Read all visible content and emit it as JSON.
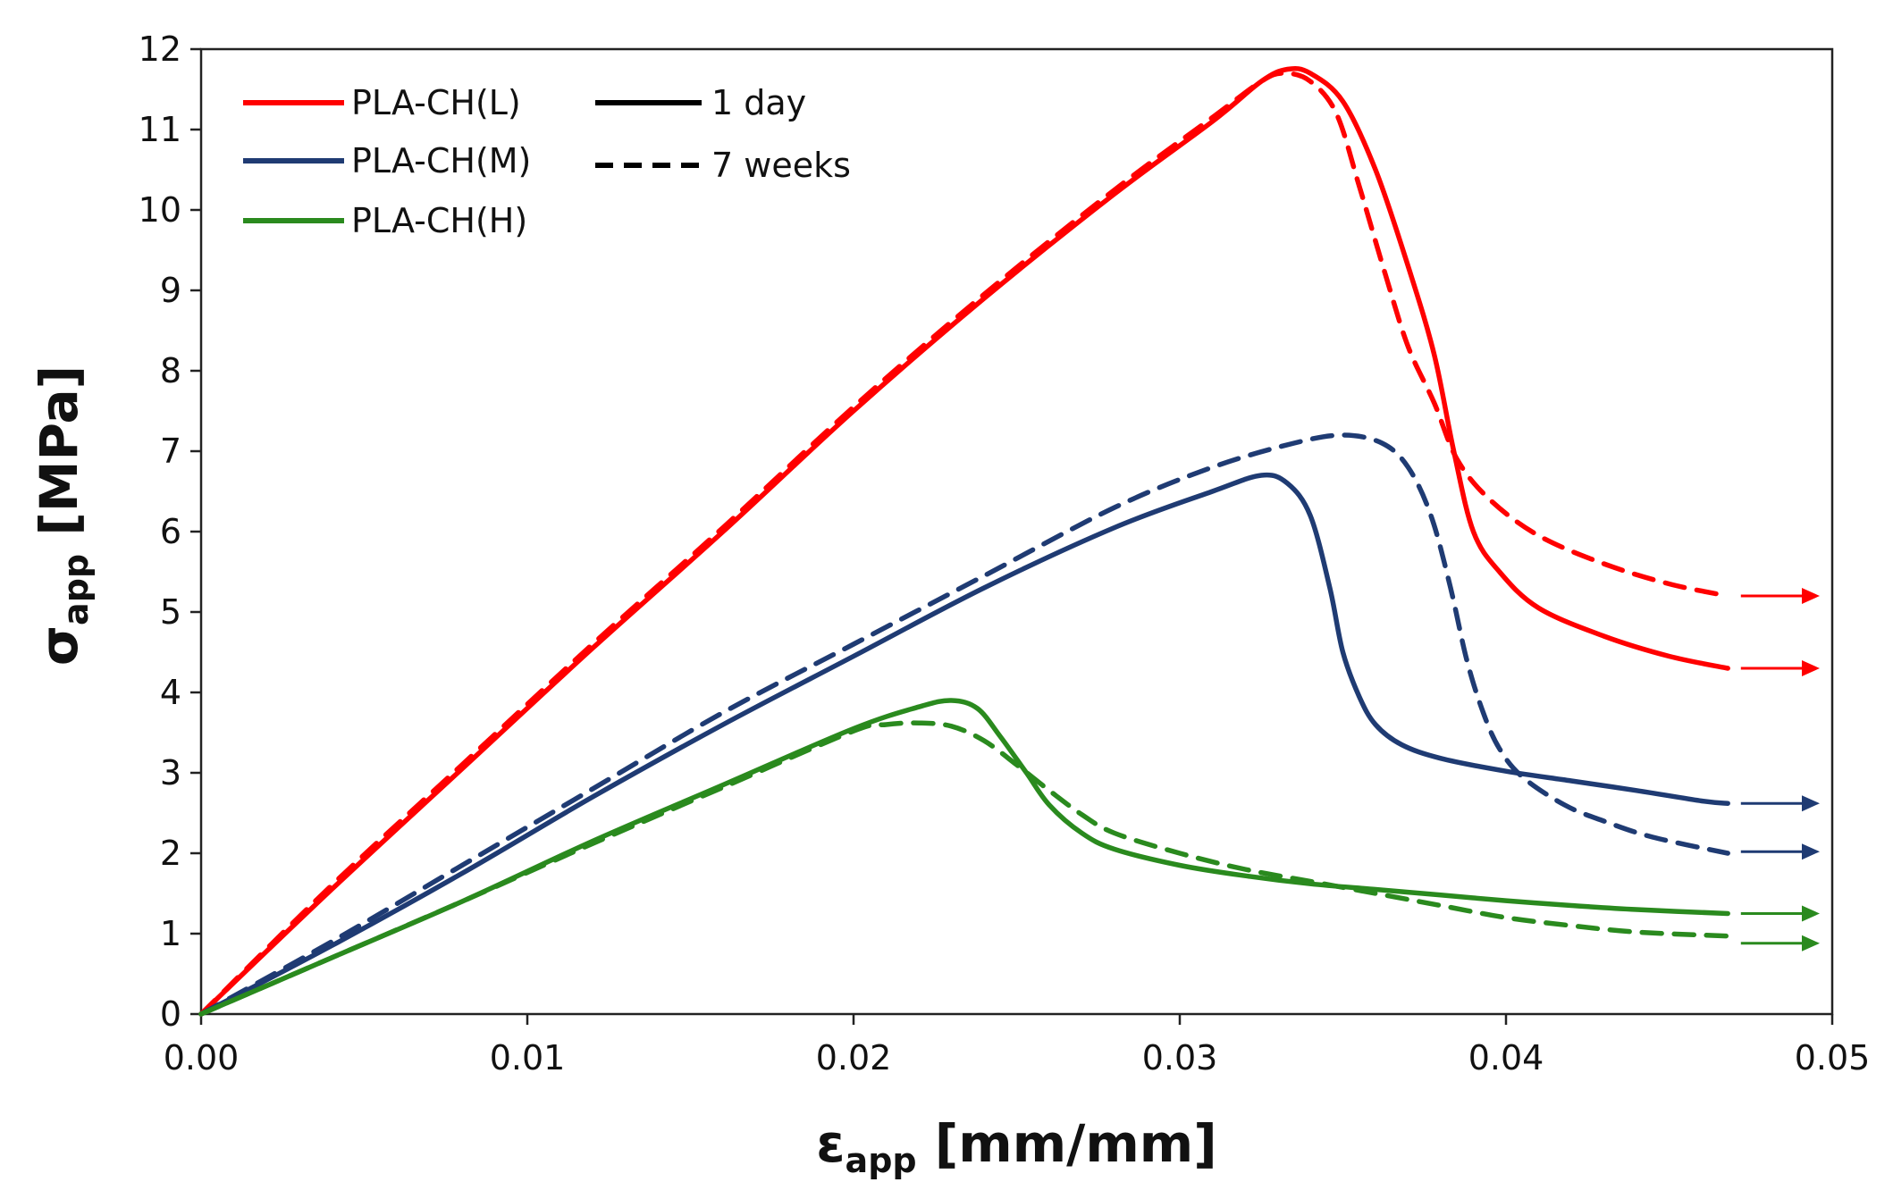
{
  "chart_data": {
    "type": "line",
    "title": "",
    "xlabel": {
      "main": "ε",
      "sub": "app",
      "unit": " [mm/mm]"
    },
    "ylabel": {
      "main": "σ",
      "sub": "app",
      "unit": " [MPa]"
    },
    "xlim": [
      0,
      0.05
    ],
    "ylim": [
      0,
      12
    ],
    "xticks": [
      "0.00",
      "0.01",
      "0.02",
      "0.03",
      "0.04",
      "0.05"
    ],
    "yticks": [
      "0",
      "1",
      "2",
      "3",
      "4",
      "5",
      "6",
      "7",
      "8",
      "9",
      "10",
      "11",
      "12"
    ],
    "grid": false,
    "legend_position": "top-left",
    "legend": {
      "materials": [
        {
          "label": "PLA-CH(L)",
          "color": "#ff0000"
        },
        {
          "label": "PLA-CH(M)",
          "color": "#1f3b73"
        },
        {
          "label": "PLA-CH(H)",
          "color": "#2a8a1e"
        }
      ],
      "times": [
        {
          "label": "1 day",
          "style": "solid"
        },
        {
          "label": "7 weeks",
          "style": "dashed"
        }
      ]
    },
    "series": [
      {
        "name": "PLA-CH(L) 1 day",
        "color": "#ff0000",
        "style": "solid",
        "x": [
          0,
          0.004,
          0.008,
          0.012,
          0.016,
          0.02,
          0.024,
          0.028,
          0.031,
          0.0325,
          0.0333,
          0.034,
          0.035,
          0.036,
          0.037,
          0.0378,
          0.0384,
          0.039,
          0.0398,
          0.041,
          0.043,
          0.045,
          0.0468
        ],
        "y": [
          0,
          1.55,
          3.05,
          4.55,
          6.0,
          7.5,
          8.9,
          10.2,
          11.1,
          11.6,
          11.75,
          11.7,
          11.35,
          10.5,
          9.3,
          8.2,
          7.0,
          6.0,
          5.5,
          5.05,
          4.7,
          4.45,
          4.3
        ],
        "arrow_y": 4.3
      },
      {
        "name": "PLA-CH(L) 7 weeks",
        "color": "#ff0000",
        "style": "dashed",
        "x": [
          0,
          0.004,
          0.008,
          0.012,
          0.016,
          0.02,
          0.024,
          0.028,
          0.031,
          0.0325,
          0.0332,
          0.034,
          0.0348,
          0.0355,
          0.0363,
          0.037,
          0.0378,
          0.0385,
          0.0395,
          0.041,
          0.043,
          0.045,
          0.0468
        ],
        "y": [
          0,
          1.6,
          3.1,
          4.6,
          6.05,
          7.55,
          8.95,
          10.25,
          11.15,
          11.6,
          11.7,
          11.6,
          11.2,
          10.3,
          9.2,
          8.3,
          7.6,
          6.9,
          6.4,
          5.95,
          5.6,
          5.35,
          5.2
        ],
        "arrow_y": 5.2
      },
      {
        "name": "PLA-CH(M) 1 day",
        "color": "#1f3b73",
        "style": "solid",
        "x": [
          0,
          0.004,
          0.008,
          0.012,
          0.016,
          0.02,
          0.024,
          0.028,
          0.031,
          0.0325,
          0.0333,
          0.034,
          0.0346,
          0.035,
          0.0355,
          0.036,
          0.0368,
          0.038,
          0.04,
          0.042,
          0.044,
          0.046,
          0.0468
        ],
        "y": [
          0,
          0.85,
          1.75,
          2.7,
          3.6,
          4.45,
          5.3,
          6.05,
          6.5,
          6.7,
          6.6,
          6.2,
          5.3,
          4.5,
          3.95,
          3.6,
          3.35,
          3.18,
          3.02,
          2.9,
          2.78,
          2.65,
          2.62
        ],
        "arrow_y": 2.62
      },
      {
        "name": "PLA-CH(M) 7 weeks",
        "color": "#1f3b73",
        "style": "dashed",
        "x": [
          0,
          0.004,
          0.008,
          0.012,
          0.016,
          0.02,
          0.024,
          0.028,
          0.031,
          0.0335,
          0.035,
          0.0362,
          0.037,
          0.0377,
          0.0383,
          0.0388,
          0.0393,
          0.0398,
          0.0405,
          0.0418,
          0.043,
          0.0445,
          0.0468
        ],
        "y": [
          0,
          0.9,
          1.85,
          2.8,
          3.75,
          4.6,
          5.45,
          6.3,
          6.8,
          7.1,
          7.2,
          7.1,
          6.8,
          6.2,
          5.3,
          4.4,
          3.75,
          3.3,
          2.95,
          2.6,
          2.4,
          2.2,
          2.0
        ],
        "arrow_y": 2.02
      },
      {
        "name": "PLA-CH(H) 1 day",
        "color": "#2a8a1e",
        "style": "solid",
        "x": [
          0,
          0.004,
          0.008,
          0.012,
          0.016,
          0.02,
          0.022,
          0.023,
          0.0238,
          0.0245,
          0.0253,
          0.026,
          0.027,
          0.028,
          0.03,
          0.032,
          0.034,
          0.036,
          0.038,
          0.04,
          0.042,
          0.044,
          0.0468
        ],
        "y": [
          0,
          0.7,
          1.4,
          2.15,
          2.85,
          3.55,
          3.82,
          3.9,
          3.8,
          3.45,
          3.0,
          2.6,
          2.25,
          2.05,
          1.85,
          1.72,
          1.62,
          1.55,
          1.48,
          1.41,
          1.35,
          1.3,
          1.25
        ],
        "arrow_y": 1.25
      },
      {
        "name": "PLA-CH(H) 7 weeks",
        "color": "#2a8a1e",
        "style": "dashed",
        "x": [
          0,
          0.004,
          0.008,
          0.012,
          0.016,
          0.02,
          0.021,
          0.022,
          0.023,
          0.024,
          0.025,
          0.026,
          0.027,
          0.028,
          0.03,
          0.032,
          0.034,
          0.036,
          0.038,
          0.04,
          0.042,
          0.044,
          0.0468
        ],
        "y": [
          0,
          0.7,
          1.4,
          2.12,
          2.82,
          3.52,
          3.6,
          3.62,
          3.58,
          3.4,
          3.1,
          2.78,
          2.48,
          2.25,
          2.0,
          1.8,
          1.65,
          1.5,
          1.35,
          1.2,
          1.1,
          1.02,
          0.97
        ],
        "arrow_y": 0.88
      }
    ]
  }
}
